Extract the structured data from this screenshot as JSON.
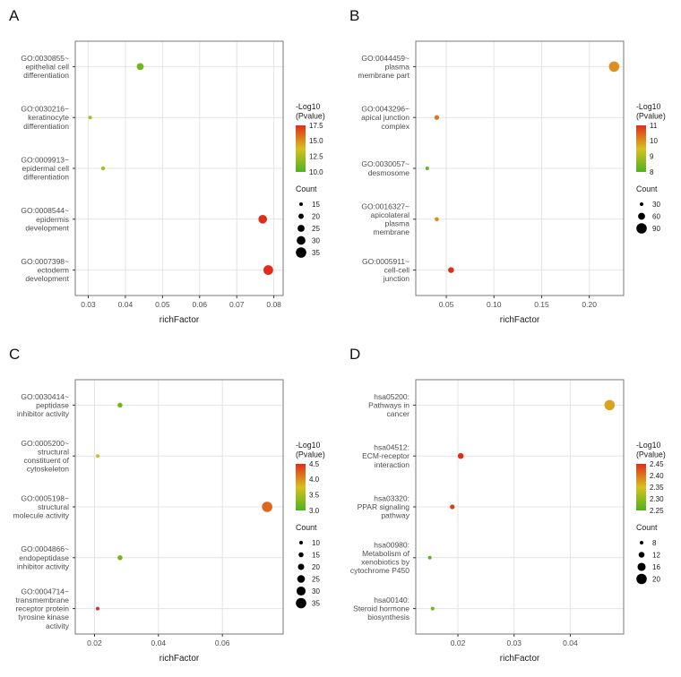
{
  "figure": {
    "background": "#ffffff"
  },
  "style": {
    "color_scale_low": "#4CB31F",
    "color_scale_mid": "#D8C020",
    "color_scale_high": "#E02D1A",
    "count_dot_color": "#000000",
    "grid_color": "#e4e4e4",
    "panel_border_color": "#7a7a7a",
    "axis_text_color": "#4d4d4d",
    "tick_color": "#333333"
  },
  "chart_data": [
    {
      "panel_label": "A",
      "type": "scatter",
      "xlabel": "richFactor",
      "ylabel": "",
      "grid": true,
      "legend_position": "right",
      "x_range": [
        0.0265,
        0.0825
      ],
      "x_tick_labels": [
        "0.03",
        "0.04",
        "0.05",
        "0.06",
        "0.07",
        "0.08"
      ],
      "x_tick_values": [
        0.03,
        0.04,
        0.05,
        0.06,
        0.07,
        0.08
      ],
      "categories": [
        [
          "GO:0030855~",
          "epithelial cell",
          "differentiation"
        ],
        [
          "GO:0030216~",
          "keratinocyte",
          "differentiation"
        ],
        [
          "GO:0009913~",
          "epidermal cell",
          "differentiation"
        ],
        [
          "GO:0008544~",
          "epidermis",
          "development"
        ],
        [
          "GO:0007398~",
          "ectoderm",
          "development"
        ]
      ],
      "points": [
        {
          "richFactor": 0.044,
          "log10_pvalue": 11.0,
          "count": 25
        },
        {
          "richFactor": 0.0305,
          "log10_pvalue": 12.5,
          "count": 15
        },
        {
          "richFactor": 0.034,
          "log10_pvalue": 12.5,
          "count": 16
        },
        {
          "richFactor": 0.077,
          "log10_pvalue": 17.5,
          "count": 30
        },
        {
          "richFactor": 0.0785,
          "log10_pvalue": 17.5,
          "count": 33
        }
      ],
      "color_legend": {
        "title_lines": [
          "-Log10",
          "(Pvalue)"
        ],
        "tick_labels": [
          "17.5",
          "15.0",
          "12.5",
          "10.0"
        ],
        "tick_values": [
          17.5,
          15.0,
          12.5,
          10.0
        ],
        "min": 10,
        "max": 17.5
      },
      "count_legend": {
        "title": "Count",
        "values": [
          15,
          20,
          25,
          30,
          35
        ],
        "min": 15,
        "max": 35
      }
    },
    {
      "panel_label": "B",
      "type": "scatter",
      "xlabel": "richFactor",
      "ylabel": "",
      "grid": true,
      "legend_position": "right",
      "x_range": [
        0.018,
        0.236
      ],
      "x_tick_labels": [
        "0.05",
        "0.10",
        "0.15",
        "0.20"
      ],
      "x_tick_values": [
        0.05,
        0.1,
        0.15,
        0.2
      ],
      "categories": [
        [
          "GO:0044459~",
          "plasma",
          "membrane part"
        ],
        [
          "GO:0043296~",
          "apical junction",
          "complex"
        ],
        [
          "GO:0030057~",
          "desmosome"
        ],
        [
          "GO:0016327~",
          "apicolateral",
          "plasma",
          "membrane"
        ],
        [
          "GO:0005911~",
          "cell-cell",
          "junction"
        ]
      ],
      "points": [
        {
          "richFactor": 0.226,
          "log10_pvalue": 10.0,
          "count": 90
        },
        {
          "richFactor": 0.04,
          "log10_pvalue": 10.3,
          "count": 40
        },
        {
          "richFactor": 0.03,
          "log10_pvalue": 8.2,
          "count": 30
        },
        {
          "richFactor": 0.04,
          "log10_pvalue": 10.0,
          "count": 35
        },
        {
          "richFactor": 0.055,
          "log10_pvalue": 11.0,
          "count": 50
        }
      ],
      "color_legend": {
        "title_lines": [
          "-Log10",
          "(Pvalue)"
        ],
        "tick_labels": [
          "11",
          "10",
          "9",
          "8"
        ],
        "tick_values": [
          11,
          10,
          9,
          8
        ],
        "min": 8,
        "max": 11
      },
      "count_legend": {
        "title": "Count",
        "values": [
          30,
          60,
          90
        ],
        "min": 30,
        "max": 90
      }
    },
    {
      "panel_label": "C",
      "type": "scatter",
      "xlabel": "richFactor",
      "ylabel": "",
      "grid": true,
      "legend_position": "right",
      "x_range": [
        0.014,
        0.079
      ],
      "x_tick_labels": [
        "0.02",
        "0.04",
        "0.06"
      ],
      "x_tick_values": [
        0.02,
        0.04,
        0.06
      ],
      "categories": [
        [
          "GO:0030414~",
          "peptidase",
          "inhibitor activity"
        ],
        [
          "GO:0005200~",
          "structural",
          "constituent of",
          "cytoskeleton"
        ],
        [
          "GO:0005198~",
          "structural",
          "molecule activity"
        ],
        [
          "GO:0004866~",
          "endopeptidase",
          "inhibitor activity"
        ],
        [
          "GO:0004714~",
          "transmembrane",
          "receptor protein",
          "tyrosine kinase",
          "activity"
        ]
      ],
      "points": [
        {
          "richFactor": 0.028,
          "log10_pvalue": 3.2,
          "count": 15
        },
        {
          "richFactor": 0.021,
          "log10_pvalue": 3.7,
          "count": 10
        },
        {
          "richFactor": 0.074,
          "log10_pvalue": 4.2,
          "count": 35
        },
        {
          "richFactor": 0.028,
          "log10_pvalue": 3.2,
          "count": 15
        },
        {
          "richFactor": 0.021,
          "log10_pvalue": 4.5,
          "count": 10
        }
      ],
      "color_legend": {
        "title_lines": [
          "-Log10",
          "(Pvalue)"
        ],
        "tick_labels": [
          "4.5",
          "4.0",
          "3.5",
          "3.0"
        ],
        "tick_values": [
          4.5,
          4.0,
          3.5,
          3.0
        ],
        "min": 3.0,
        "max": 4.5
      },
      "count_legend": {
        "title": "Count",
        "values": [
          10,
          15,
          20,
          25,
          30,
          35
        ],
        "min": 10,
        "max": 35
      }
    },
    {
      "panel_label": "D",
      "type": "scatter",
      "xlabel": "richFactor",
      "ylabel": "",
      "grid": true,
      "legend_position": "right",
      "x_range": [
        0.0125,
        0.0495
      ],
      "x_tick_labels": [
        "0.02",
        "0.03",
        "0.04"
      ],
      "x_tick_values": [
        0.02,
        0.03,
        0.04
      ],
      "categories": [
        [
          "hsa05200:",
          "Pathways in",
          "cancer"
        ],
        [
          "hsa04512:",
          "ECM-receptor",
          "interaction"
        ],
        [
          "hsa03320:",
          "PPAR signaling",
          "pathway"
        ],
        [
          "hsa00980:",
          "Metabolism of",
          "xenobiotics by",
          "cytochrome P450"
        ],
        [
          "hsa00140:",
          "Steroid hormone",
          "biosynthesis"
        ]
      ],
      "points": [
        {
          "richFactor": 0.047,
          "log10_pvalue": 2.37,
          "count": 20
        },
        {
          "richFactor": 0.0205,
          "log10_pvalue": 2.45,
          "count": 12
        },
        {
          "richFactor": 0.019,
          "log10_pvalue": 2.44,
          "count": 10
        },
        {
          "richFactor": 0.015,
          "log10_pvalue": 2.26,
          "count": 8
        },
        {
          "richFactor": 0.0155,
          "log10_pvalue": 2.27,
          "count": 8
        }
      ],
      "color_legend": {
        "title_lines": [
          "-Log10",
          "(Pvalue)"
        ],
        "tick_labels": [
          "2.45",
          "2.40",
          "2.35",
          "2.30",
          "2.25"
        ],
        "tick_values": [
          2.45,
          2.4,
          2.35,
          2.3,
          2.25
        ],
        "min": 2.25,
        "max": 2.45
      },
      "count_legend": {
        "title": "Count",
        "values": [
          8,
          12,
          16,
          20
        ],
        "min": 8,
        "max": 20
      }
    }
  ]
}
